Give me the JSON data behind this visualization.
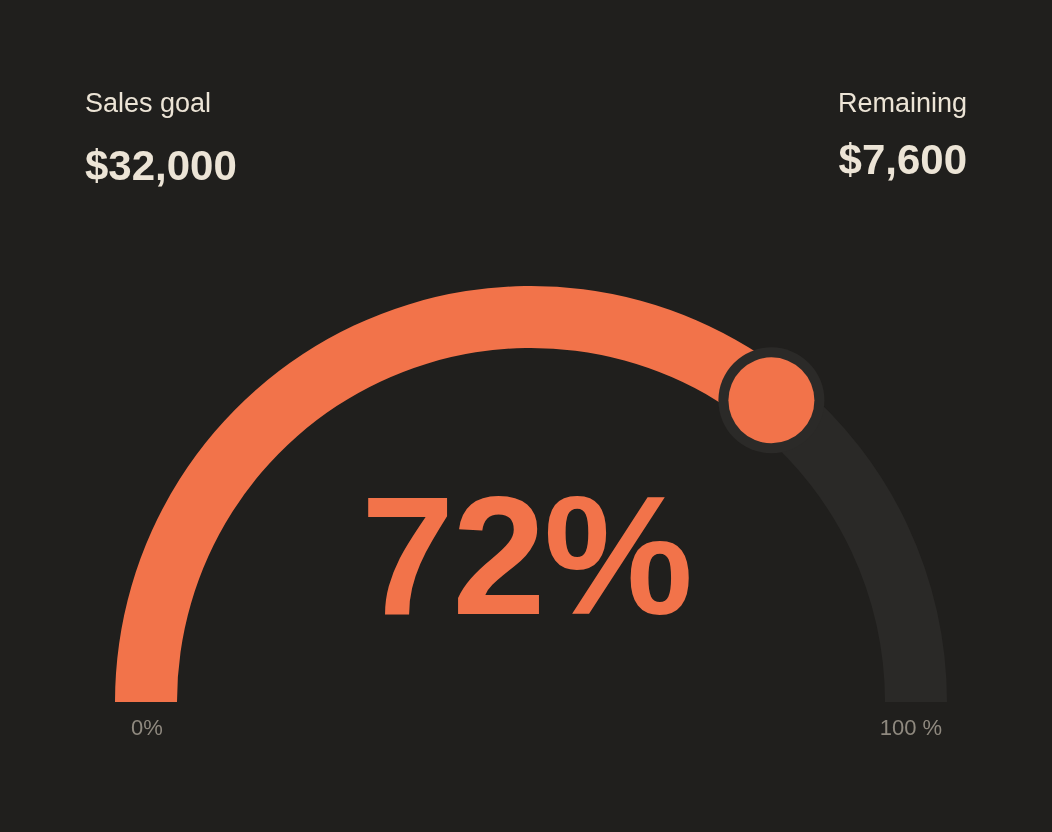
{
  "chart_data": {
    "type": "donut",
    "categories": [
      null,
      null
    ],
    "values": [
      72,
      28
    ],
    "colors": [
      "#f2734a",
      "#2a2927"
    ],
    "annotations": [
      "Sales goal",
      "$32,000",
      "Remaining",
      "$7,600",
      "72%",
      "0%",
      "100 %"
    ]
  }
}
